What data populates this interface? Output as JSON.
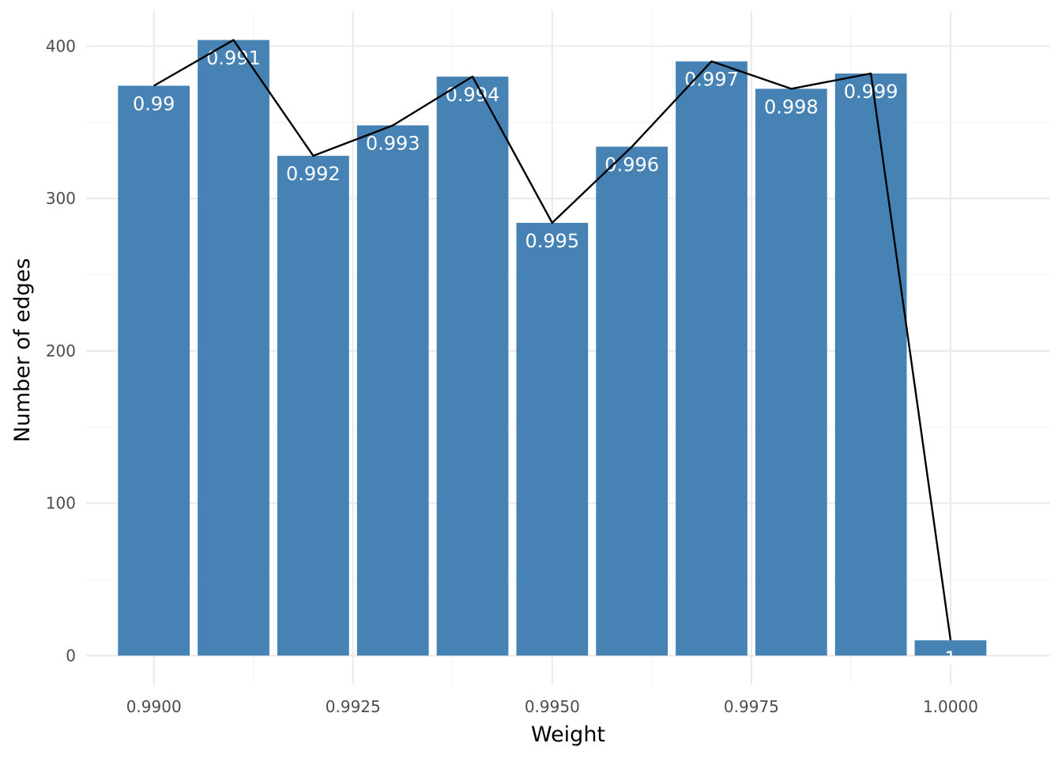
{
  "chart_data": {
    "type": "bar",
    "xlabel": "Weight",
    "ylabel": "Number of edges",
    "x": [
      0.99,
      0.991,
      0.992,
      0.993,
      0.994,
      0.995,
      0.996,
      0.997,
      0.998,
      0.999,
      1.0
    ],
    "bar_labels": [
      "0.99",
      "0.991",
      "0.992",
      "0.993",
      "0.994",
      "0.995",
      "0.996",
      "0.997",
      "0.998",
      "0.999",
      "1"
    ],
    "values": [
      374,
      404,
      328,
      348,
      380,
      284,
      334,
      390,
      372,
      382,
      10
    ],
    "bar_width": 0.0009,
    "overlay_line": {
      "type": "line",
      "values_from": "values",
      "color": "#000000"
    },
    "xlim": [
      0.98915,
      1.00125
    ],
    "ylim": [
      -19,
      423
    ],
    "x_ticks": [
      0.99,
      0.9925,
      0.995,
      0.9975,
      1.0
    ],
    "x_tick_labels": [
      "0.9900",
      "0.9925",
      "0.9950",
      "0.9975",
      "1.0000"
    ],
    "x_minor_ticks": [
      0.99125,
      0.99375,
      0.99625,
      0.99875
    ],
    "y_ticks": [
      0,
      100,
      200,
      300,
      400
    ],
    "y_tick_labels": [
      "0",
      "100",
      "200",
      "300",
      "400"
    ],
    "y_minor_ticks": [
      50,
      150,
      250,
      350
    ],
    "grid": true,
    "legend": "none",
    "colors": {
      "bar": "#4682B4",
      "line": "#000000",
      "grid_major": "#EBEBEB",
      "grid_minor": "#F5F5F5",
      "bar_label": "#FFFFFF"
    }
  }
}
